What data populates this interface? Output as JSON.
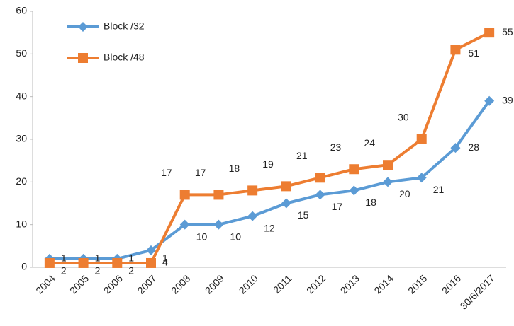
{
  "chart_data": {
    "type": "line",
    "categories": [
      "2004",
      "2005",
      "2006",
      "2007",
      "2008",
      "2009",
      "2010",
      "2011",
      "2012",
      "2013",
      "2014",
      "2015",
      "2016",
      "30/6/2017"
    ],
    "series": [
      {
        "name": "Block /32",
        "color": "#5b9bd5",
        "marker": "diamond",
        "values": [
          2,
          2,
          2,
          4,
          10,
          10,
          12,
          15,
          17,
          18,
          20,
          21,
          28,
          39
        ]
      },
      {
        "name": "Block /48",
        "color": "#ed7d31",
        "marker": "square",
        "values": [
          1,
          1,
          1,
          1,
          17,
          17,
          18,
          19,
          21,
          23,
          24,
          30,
          51,
          55
        ]
      }
    ],
    "ylim": [
      0,
      60
    ],
    "yticks": [
      0,
      10,
      20,
      30,
      40,
      50,
      60
    ],
    "grid": false,
    "legend": "upper left"
  }
}
